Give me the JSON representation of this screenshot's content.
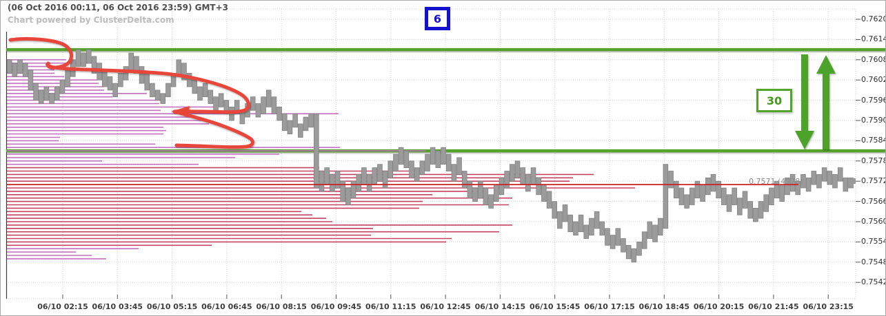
{
  "header": {
    "date_range": "(06 Oct 2016 00:11, 06 Oct 2016 23:59) GMT+3",
    "powered_by": "Chart powered by ClusterDelta.com"
  },
  "badges": {
    "period": "6",
    "range_pips": "30"
  },
  "current_price_label": "0.7571 (4978)",
  "colors": {
    "green": "#55a32c",
    "red_annotation": "#e8453b",
    "magenta": "#c470c1",
    "crimson": "#c64060",
    "poc_red": "#cc2222",
    "bar_fill": "#9b9b9b",
    "bar_stroke": "#828282",
    "blue": "#1412cf",
    "grid": "#cfcfcf"
  },
  "chart_data": {
    "type": "candlestick",
    "title": "",
    "xlabel": "",
    "ylabel": "",
    "x_ticks": [
      "06/10 02:15",
      "06/10 03:45",
      "06/10 05:15",
      "06/10 06:45",
      "06/10 08:15",
      "06/10 09:45",
      "06/10 11:15",
      "06/10 12:45",
      "06/10 14:15",
      "06/10 15:45",
      "06/10 17:15",
      "06/10 18:45",
      "06/10 20:15",
      "06/10 21:45",
      "06/10 23:15"
    ],
    "y_ticks": [
      "0.7620",
      "0.7614",
      "0.7608",
      "0.7602",
      "0.7596",
      "0.7590",
      "0.7584",
      "0.7578",
      "0.7572",
      "0.7566",
      "0.7560",
      "0.7554",
      "0.7548",
      "0.7542"
    ],
    "y_range": [
      0.7538,
      0.7624
    ],
    "grid": true,
    "resistance_level": 0.7611,
    "support_level": 0.7581,
    "range_pips": 30,
    "current_price": 0.7572,
    "poc_price": 0.7571,
    "poc_volume": 4978,
    "bars_high_low_pips": [
      [
        7608,
        7604
      ],
      [
        7607,
        7603
      ],
      [
        7608,
        7604
      ],
      [
        7607,
        7603
      ],
      [
        7605,
        7599
      ],
      [
        7601,
        7596
      ],
      [
        7599,
        7595
      ],
      [
        7600,
        7596
      ],
      [
        7598,
        7595
      ],
      [
        7600,
        7596
      ],
      [
        7602,
        7598
      ],
      [
        7605,
        7600
      ],
      [
        7608,
        7603
      ],
      [
        7611,
        7606
      ],
      [
        7610,
        7606
      ],
      [
        7611,
        7607
      ],
      [
        7609,
        7604
      ],
      [
        7607,
        7602
      ],
      [
        7605,
        7600
      ],
      [
        7603,
        7599
      ],
      [
        7601,
        7597
      ],
      [
        7604,
        7600
      ],
      [
        7606,
        7602
      ],
      [
        7610,
        7605
      ],
      [
        7609,
        7604
      ],
      [
        7606,
        7601
      ],
      [
        7604,
        7599
      ],
      [
        7601,
        7597
      ],
      [
        7599,
        7596
      ],
      [
        7598,
        7595
      ],
      [
        7601,
        7597
      ],
      [
        7604,
        7600
      ],
      [
        7608,
        7603
      ],
      [
        7607,
        7602
      ],
      [
        7604,
        7600
      ],
      [
        7602,
        7598
      ],
      [
        7600,
        7596
      ],
      [
        7601,
        7597
      ],
      [
        7599,
        7595
      ],
      [
        7597,
        7593
      ],
      [
        7598,
        7594
      ],
      [
        7596,
        7592
      ],
      [
        7594,
        7590
      ],
      [
        7596,
        7592
      ],
      [
        7593,
        7589
      ],
      [
        7595,
        7591
      ],
      [
        7597,
        7593
      ],
      [
        7595,
        7591
      ],
      [
        7597,
        7592
      ],
      [
        7599,
        7594
      ],
      [
        7597,
        7592
      ],
      [
        7594,
        7590
      ],
      [
        7592,
        7587
      ],
      [
        7590,
        7586
      ],
      [
        7592,
        7588
      ],
      [
        7589,
        7585
      ],
      [
        7591,
        7587
      ],
      [
        7592,
        7588
      ],
      [
        7592,
        7570
      ],
      [
        7575,
        7569
      ],
      [
        7576,
        7571
      ],
      [
        7574,
        7569
      ],
      [
        7575,
        7570
      ],
      [
        7572,
        7566
      ],
      [
        7570,
        7565
      ],
      [
        7572,
        7567
      ],
      [
        7574,
        7569
      ],
      [
        7576,
        7571
      ],
      [
        7574,
        7569
      ],
      [
        7576,
        7571
      ],
      [
        7577,
        7572
      ],
      [
        7575,
        7570
      ],
      [
        7578,
        7573
      ],
      [
        7580,
        7575
      ],
      [
        7582,
        7577
      ],
      [
        7581,
        7576
      ],
      [
        7578,
        7573
      ],
      [
        7576,
        7572
      ],
      [
        7578,
        7574
      ],
      [
        7580,
        7575
      ],
      [
        7582,
        7577
      ],
      [
        7581,
        7576
      ],
      [
        7582,
        7577
      ],
      [
        7580,
        7575
      ],
      [
        7577,
        7572
      ],
      [
        7579,
        7574
      ],
      [
        7575,
        7570
      ],
      [
        7572,
        7567
      ],
      [
        7570,
        7566
      ],
      [
        7572,
        7567
      ],
      [
        7570,
        7565
      ],
      [
        7568,
        7564
      ],
      [
        7571,
        7566
      ],
      [
        7573,
        7568
      ],
      [
        7575,
        7570
      ],
      [
        7577,
        7572
      ],
      [
        7578,
        7573
      ],
      [
        7576,
        7571
      ],
      [
        7574,
        7569
      ],
      [
        7576,
        7571
      ],
      [
        7573,
        7568
      ],
      [
        7571,
        7566
      ],
      [
        7569,
        7564
      ],
      [
        7566,
        7561
      ],
      [
        7563,
        7558
      ],
      [
        7565,
        7560
      ],
      [
        7562,
        7557
      ],
      [
        7560,
        7556
      ],
      [
        7562,
        7557
      ],
      [
        7559,
        7555
      ],
      [
        7561,
        7556
      ],
      [
        7563,
        7558
      ],
      [
        7560,
        7556
      ],
      [
        7558,
        7553
      ],
      [
        7556,
        7552
      ],
      [
        7558,
        7553
      ],
      [
        7555,
        7551
      ],
      [
        7553,
        7549
      ],
      [
        7552,
        7548
      ],
      [
        7554,
        7550
      ],
      [
        7557,
        7552
      ],
      [
        7560,
        7555
      ],
      [
        7559,
        7554
      ],
      [
        7561,
        7556
      ],
      [
        7577,
        7558
      ],
      [
        7575,
        7570
      ],
      [
        7572,
        7567
      ],
      [
        7570,
        7565
      ],
      [
        7568,
        7564
      ],
      [
        7570,
        7565
      ],
      [
        7572,
        7567
      ],
      [
        7571,
        7566
      ],
      [
        7573,
        7568
      ],
      [
        7574,
        7569
      ],
      [
        7572,
        7567
      ],
      [
        7570,
        7565
      ],
      [
        7568,
        7563
      ],
      [
        7570,
        7565
      ],
      [
        7567,
        7562
      ],
      [
        7569,
        7564
      ],
      [
        7566,
        7561
      ],
      [
        7564,
        7560
      ],
      [
        7566,
        7561
      ],
      [
        7568,
        7563
      ],
      [
        7570,
        7565
      ],
      [
        7572,
        7567
      ],
      [
        7571,
        7566
      ],
      [
        7573,
        7568
      ],
      [
        7574,
        7569
      ],
      [
        7572,
        7568
      ],
      [
        7574,
        7570
      ],
      [
        7573,
        7569
      ],
      [
        7575,
        7571
      ],
      [
        7574,
        7570
      ],
      [
        7576,
        7572
      ],
      [
        7575,
        7571
      ],
      [
        7574,
        7570
      ],
      [
        7576,
        7572
      ],
      [
        7573,
        7569
      ],
      [
        7573,
        7570
      ]
    ],
    "profile_lines": [
      [
        7608,
        95,
        "m"
      ],
      [
        7607,
        140,
        "m"
      ],
      [
        7606,
        88,
        "m"
      ],
      [
        7605,
        78,
        "m"
      ],
      [
        7604,
        78,
        "m"
      ],
      [
        7603,
        92,
        "m"
      ],
      [
        7602,
        140,
        "m"
      ],
      [
        7601,
        142,
        "m"
      ],
      [
        7600,
        150,
        "m"
      ],
      [
        7599,
        150,
        "m"
      ],
      [
        7598,
        212,
        "m"
      ],
      [
        7597,
        162,
        "m"
      ],
      [
        7596,
        236,
        "m"
      ],
      [
        7595,
        230,
        "m"
      ],
      [
        7594,
        312,
        "m"
      ],
      [
        7593,
        232,
        "m"
      ],
      [
        7592,
        490,
        "m"
      ],
      [
        7591,
        286,
        "m"
      ],
      [
        7590,
        296,
        "m"
      ],
      [
        7589,
        302,
        "m"
      ],
      [
        7588,
        236,
        "m"
      ],
      [
        7587,
        240,
        "m"
      ],
      [
        7586,
        236,
        "m"
      ],
      [
        7585,
        86,
        "m"
      ],
      [
        7584,
        84,
        "m"
      ],
      [
        7583,
        224,
        "m"
      ],
      [
        7582,
        492,
        "m"
      ],
      [
        7581,
        616,
        "m"
      ],
      [
        7580,
        404,
        "m"
      ],
      [
        7579,
        340,
        "m"
      ],
      [
        7578,
        147,
        "m"
      ],
      [
        7577,
        287,
        "m"
      ],
      [
        7576,
        462,
        "c"
      ],
      [
        7575,
        608,
        "c"
      ],
      [
        7574,
        860,
        "c"
      ],
      [
        7573,
        830,
        "c"
      ],
      [
        7572,
        825,
        "c"
      ],
      [
        7570,
        920,
        "c"
      ],
      [
        7569,
        700,
        "c"
      ],
      [
        7568,
        626,
        "c"
      ],
      [
        7567,
        742,
        "c"
      ],
      [
        7566,
        612,
        "c"
      ],
      [
        7565,
        737,
        "c"
      ],
      [
        7564,
        607,
        "c"
      ],
      [
        7563,
        436,
        "c"
      ],
      [
        7562,
        452,
        "c"
      ],
      [
        7561,
        472,
        "c"
      ],
      [
        7560,
        481,
        "c"
      ],
      [
        7559,
        742,
        "c"
      ],
      [
        7558,
        540,
        "c"
      ],
      [
        7557,
        723,
        "c"
      ],
      [
        7556,
        537,
        "c"
      ],
      [
        7555,
        654,
        "c"
      ],
      [
        7554,
        646,
        "c"
      ],
      [
        7553,
        306,
        "c"
      ],
      [
        7552,
        200,
        "m"
      ],
      [
        7551,
        109,
        "m"
      ],
      [
        7550,
        132,
        "m"
      ],
      [
        7549,
        153,
        "m"
      ],
      [
        7571,
        1157,
        "poc"
      ]
    ]
  }
}
